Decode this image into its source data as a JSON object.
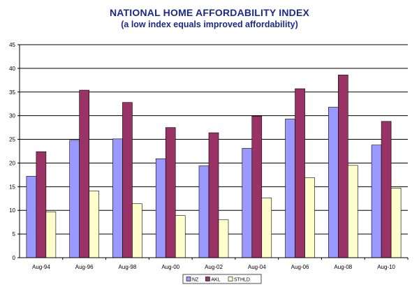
{
  "chart_data": {
    "type": "bar",
    "title": "NATIONAL HOME AFFORDABILITY INDEX",
    "subtitle": "(a low index equals improved affordability)",
    "xlabel": "",
    "ylabel": "",
    "ylim": [
      0,
      45
    ],
    "yticks": [
      0,
      5,
      10,
      15,
      20,
      25,
      30,
      35,
      40,
      45
    ],
    "grid": true,
    "legend_position": "bottom-right",
    "categories": [
      "Aug-94",
      "Aug-96",
      "Aug-98",
      "Aug-00",
      "Aug-02",
      "Aug-04",
      "Aug-06",
      "Aug-08",
      "Aug-10"
    ],
    "series": [
      {
        "name": "NZ",
        "color": "#9999ff",
        "values": [
          17.2,
          24.8,
          25.1,
          20.9,
          19.4,
          23.1,
          29.3,
          31.8,
          23.8
        ]
      },
      {
        "name": "AKL",
        "color": "#993366",
        "values": [
          22.4,
          35.4,
          32.8,
          27.5,
          26.4,
          29.9,
          35.7,
          38.6,
          28.8
        ]
      },
      {
        "name": "STHLD",
        "color": "#ffffcc",
        "values": [
          9.7,
          14.1,
          11.4,
          8.9,
          8.0,
          12.6,
          16.9,
          19.5,
          14.7
        ]
      }
    ]
  }
}
